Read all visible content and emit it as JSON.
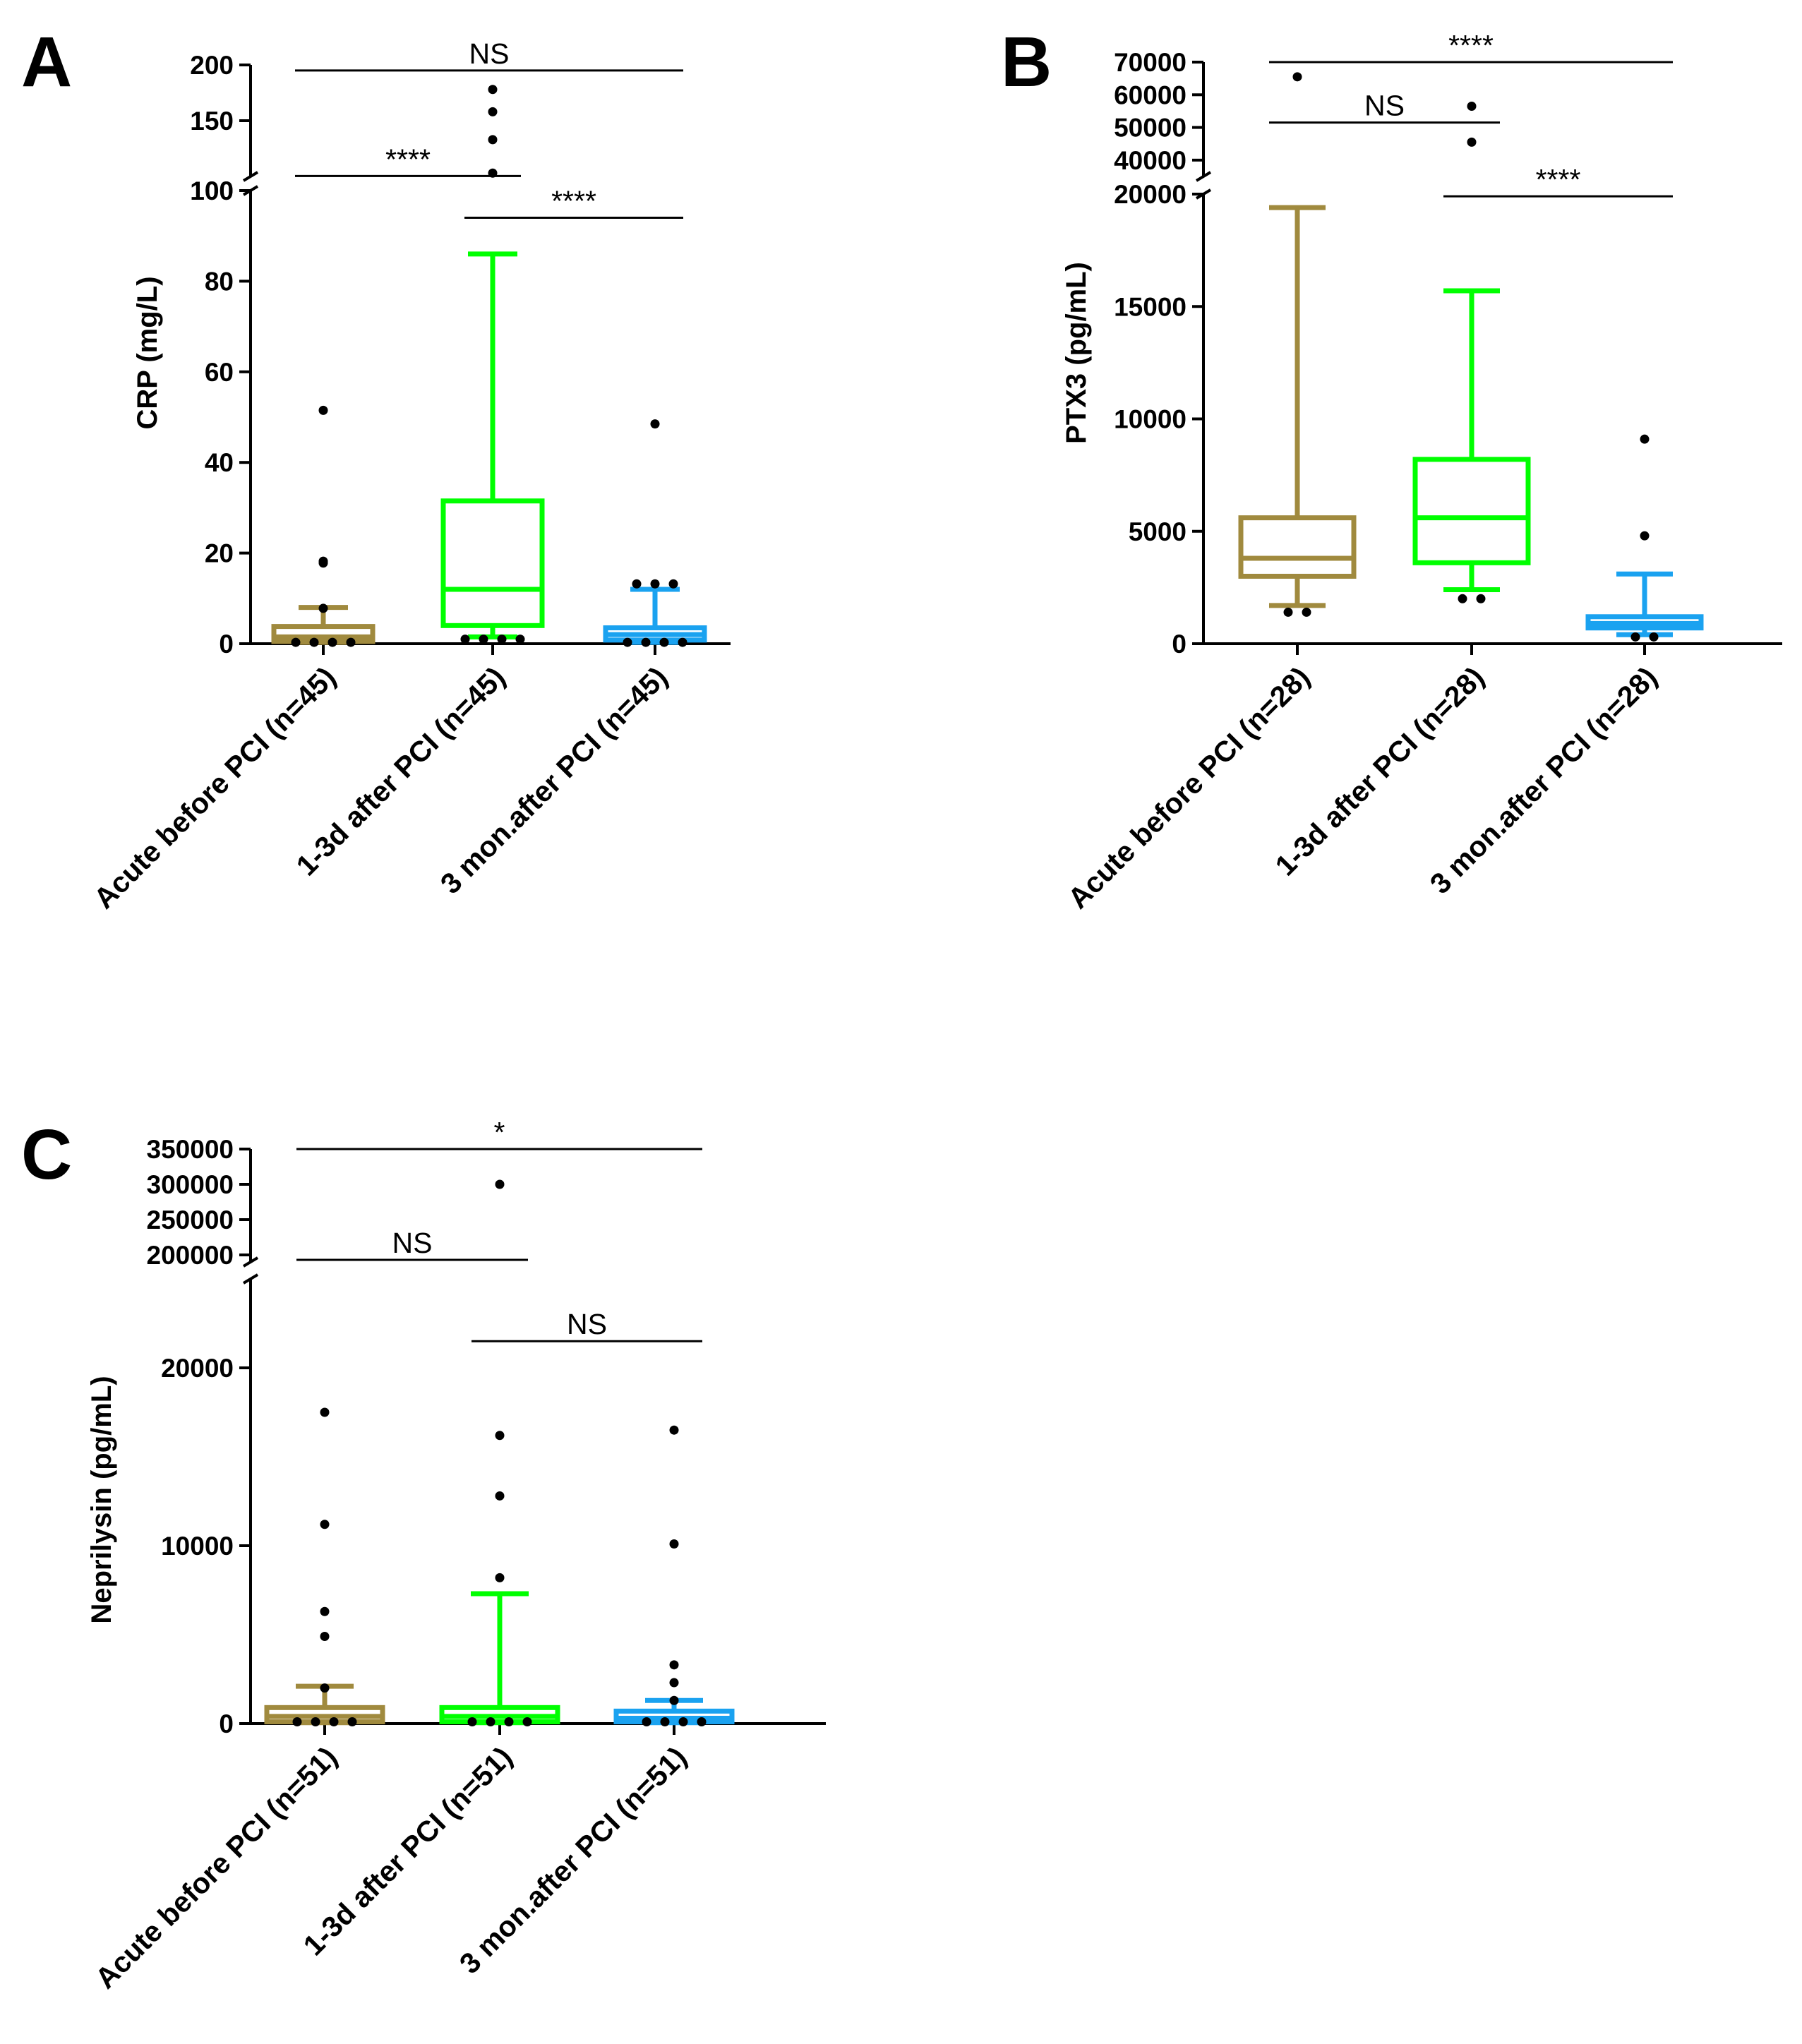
{
  "colors": {
    "acute": "#A08A3E",
    "early": "#00FF00",
    "late": "#1AA2F0",
    "axis": "#000000",
    "point": "#000000"
  },
  "panels": [
    {
      "letter": "A",
      "chart_data": {
        "type": "boxplot",
        "ylabel": "CRP (mg/L)",
        "y_segments": [
          {
            "range": [
              0,
              100
            ],
            "ticks": [
              0,
              20,
              40,
              60,
              80,
              100
            ]
          },
          {
            "range": [
              100,
              200
            ],
            "ticks": [
              100,
              150,
              200
            ]
          }
        ],
        "categories": [
          "Acute before PCI (n=45)",
          "1-3d after PCI (n=45)",
          "3 mon.after PCI (n=45)"
        ],
        "series": [
          {
            "name": "Acute before PCI (n=45)",
            "color_key": "acute",
            "whisker_low": 0.3,
            "q1": 0.5,
            "median": 1.5,
            "q3": 3.8,
            "whisker_high": 8,
            "outliers": [
              51.5,
              18.2,
              17.8,
              7.8,
              0.3,
              0.3,
              0.3,
              0.3
            ]
          },
          {
            "name": "1-3d after PCI (n=45)",
            "color_key": "early",
            "whisker_low": 1.5,
            "q1": 4,
            "median": 12,
            "q3": 31.5,
            "whisker_high": 86,
            "outliers": [
              103,
              133,
              158,
              178,
              1,
              1,
              1,
              1
            ]
          },
          {
            "name": "3 mon.after PCI (n=45)",
            "color_key": "late",
            "whisker_low": 0.3,
            "q1": 0.8,
            "median": 2,
            "q3": 3.5,
            "whisker_high": 12,
            "outliers": [
              48.5,
              13.2,
              13.2,
              13.2,
              0.3,
              0.3,
              0.3,
              0.3
            ]
          }
        ],
        "comparisons": [
          {
            "from": 0,
            "to": 2,
            "label": "NS",
            "y": 195
          },
          {
            "from": 0,
            "to": 1,
            "label": "****",
            "y": 100.4
          },
          {
            "from": 1,
            "to": 2,
            "label": "****",
            "y": 94
          }
        ]
      }
    },
    {
      "letter": "B",
      "chart_data": {
        "type": "boxplot",
        "ylabel": "PTX3 (pg/mL)",
        "y_segments": [
          {
            "range": [
              0,
              20000
            ],
            "ticks": [
              0,
              5000,
              10000,
              15000,
              20000
            ]
          },
          {
            "range": [
              35000,
              70000
            ],
            "ticks": [
              40000,
              50000,
              60000,
              70000
            ]
          }
        ],
        "categories": [
          "Acute before PCI (n=28)",
          "1-3d after PCI (n=28)",
          "3 mon.after PCI (n=28)"
        ],
        "series": [
          {
            "name": "Acute before PCI (n=28)",
            "color_key": "acute",
            "whisker_low": 1700,
            "q1": 3000,
            "median": 3800,
            "q3": 5600,
            "whisker_high": 19400,
            "outliers": [
              1400,
              1400,
              65500
            ]
          },
          {
            "name": "1-3d after PCI (n=28)",
            "color_key": "early",
            "whisker_low": 2400,
            "q1": 3600,
            "median": 5600,
            "q3": 8200,
            "whisker_high": 15700,
            "outliers": [
              2000,
              2000,
              56500,
              45500
            ]
          },
          {
            "name": "3 mon.after PCI (n=28)",
            "color_key": "late",
            "whisker_low": 400,
            "q1": 700,
            "median": 900,
            "q3": 1200,
            "whisker_high": 3100,
            "outliers": [
              9100,
              4800,
              300,
              300
            ]
          }
        ],
        "comparisons": [
          {
            "from": 0,
            "to": 2,
            "label": "****",
            "y": 71000
          },
          {
            "from": 0,
            "to": 1,
            "label": "NS",
            "y": 51500
          },
          {
            "from": 1,
            "to": 2,
            "label": "****",
            "y": 19900
          }
        ]
      }
    },
    {
      "letter": "C",
      "chart_data": {
        "type": "boxplot",
        "ylabel": "Neprilysin (pg/mL)",
        "y_segments": [
          {
            "range": [
              0,
              25000
            ],
            "ticks": [
              0,
              10000,
              20000
            ]
          },
          {
            "range": [
              190000,
              350000
            ],
            "ticks": [
              200000,
              250000,
              300000,
              350000
            ]
          }
        ],
        "categories": [
          "Acute before PCI (n=51)",
          "1-3d after PCI (n=51)",
          "3 mon.after PCI (n=51)"
        ],
        "series": [
          {
            "name": "Acute before PCI (n=51)",
            "color_key": "acute",
            "whisker_low": 50,
            "q1": 100,
            "median": 400,
            "q3": 900,
            "whisker_high": 2100,
            "outliers": [
              17500,
              11200,
              6300,
              4900,
              2000,
              100,
              100,
              100,
              100
            ]
          },
          {
            "name": "1-3d after PCI (n=51)",
            "color_key": "early",
            "whisker_low": 50,
            "q1": 100,
            "median": 400,
            "q3": 900,
            "whisker_high": 7300,
            "outliers": [
              300000,
              16200,
              12800,
              8200,
              100,
              100,
              100,
              100
            ]
          },
          {
            "name": "3 mon.after PCI (n=51)",
            "color_key": "late",
            "whisker_low": 50,
            "q1": 100,
            "median": 300,
            "q3": 700,
            "whisker_high": 1300,
            "outliers": [
              16500,
              10100,
              3300,
              2300,
              1300,
              100,
              100,
              100,
              100
            ]
          }
        ],
        "comparisons": [
          {
            "from": 0,
            "to": 2,
            "label": "*",
            "y": 350000
          },
          {
            "from": 0,
            "to": 1,
            "label": "NS",
            "y": 193000
          },
          {
            "from": 1,
            "to": 2,
            "label": "NS",
            "y": 21500
          }
        ]
      }
    }
  ]
}
